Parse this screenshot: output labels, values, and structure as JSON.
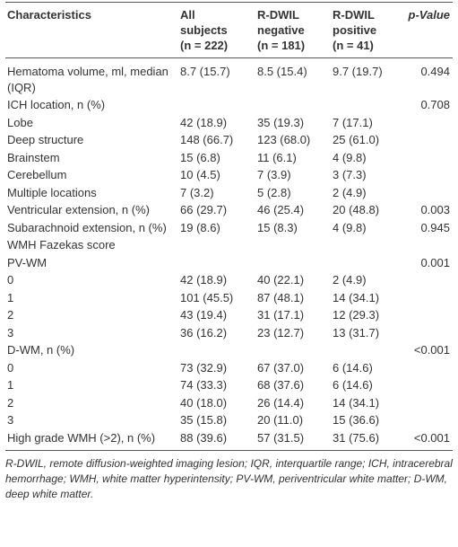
{
  "table": {
    "header": [
      [
        "Characteristics"
      ],
      [
        "All",
        "subjects",
        "(n = 222)"
      ],
      [
        "R-DWIL",
        "negative",
        "(n = 181)"
      ],
      [
        "R-DWIL",
        "positive",
        "(n = 41)"
      ],
      [
        "p-Value"
      ]
    ],
    "rows": [
      [
        "Hematoma volume, ml, median (IQR)",
        "8.7 (15.7)",
        "8.5 (15.4)",
        "9.7 (19.7)",
        "0.494"
      ],
      [
        "ICH location, n (%)",
        null,
        null,
        null,
        "0.708"
      ],
      [
        "Lobe",
        "42 (18.9)",
        "35 (19.3)",
        "7 (17.1)",
        null
      ],
      [
        "Deep structure",
        "148 (66.7)",
        "123 (68.0)",
        "25 (61.0)",
        null
      ],
      [
        "Brainstem",
        "15 (6.8)",
        "11 (6.1)",
        "4 (9.8)",
        null
      ],
      [
        "Cerebellum",
        "10 (4.5)",
        "7 (3.9)",
        "3 (7.3)",
        null
      ],
      [
        "Multiple locations",
        "7 (3.2)",
        "5 (2.8)",
        "2 (4.9)",
        null
      ],
      [
        "Ventricular extension, n (%)",
        "66 (29.7)",
        "46 (25.4)",
        "20 (48.8)",
        "0.003"
      ],
      [
        "Subarachnoid extension, n (%)",
        "19 (8.6)",
        "15 (8.3)",
        "4 (9.8)",
        "0.945"
      ],
      [
        "WMH Fazekas score",
        null,
        null,
        null,
        null
      ],
      [
        "PV-WM",
        null,
        null,
        null,
        "0.001"
      ],
      [
        "0",
        "42 (18.9)",
        "40 (22.1)",
        "2 (4.9)",
        null
      ],
      [
        "1",
        "101 (45.5)",
        "87 (48.1)",
        "14 (34.1)",
        null
      ],
      [
        "2",
        "43 (19.4)",
        "31 (17.1)",
        "12 (29.3)",
        null
      ],
      [
        "3",
        "36 (16.2)",
        "23 (12.7)",
        "13 (31.7)",
        null
      ],
      [
        "D-WM, n (%)",
        null,
        null,
        null,
        "<0.001"
      ],
      [
        "0",
        "73 (32.9)",
        "67 (37.0)",
        "6 (14.6)",
        null
      ],
      [
        "1",
        "74 (33.3)",
        "68 (37.6)",
        "6 (14.6)",
        null
      ],
      [
        "2",
        "40 (18.0)",
        "26 (14.4)",
        "14 (34.1)",
        null
      ],
      [
        "3",
        "35 (15.8)",
        "20 (11.0)",
        "15 (36.6)",
        null
      ],
      [
        "High grade WMH (>2), n (%)",
        "88 (39.6)",
        "57 (31.5)",
        "31 (75.6)",
        "<0.001"
      ]
    ],
    "footnote": "R-DWIL, remote diffusion-weighted imaging lesion; IQR, interquartile range; ICH, intracerebral hemorrhage; WMH, white matter hyperintensity; PV-WM, periventricular white matter; D-WM, deep white matter."
  }
}
